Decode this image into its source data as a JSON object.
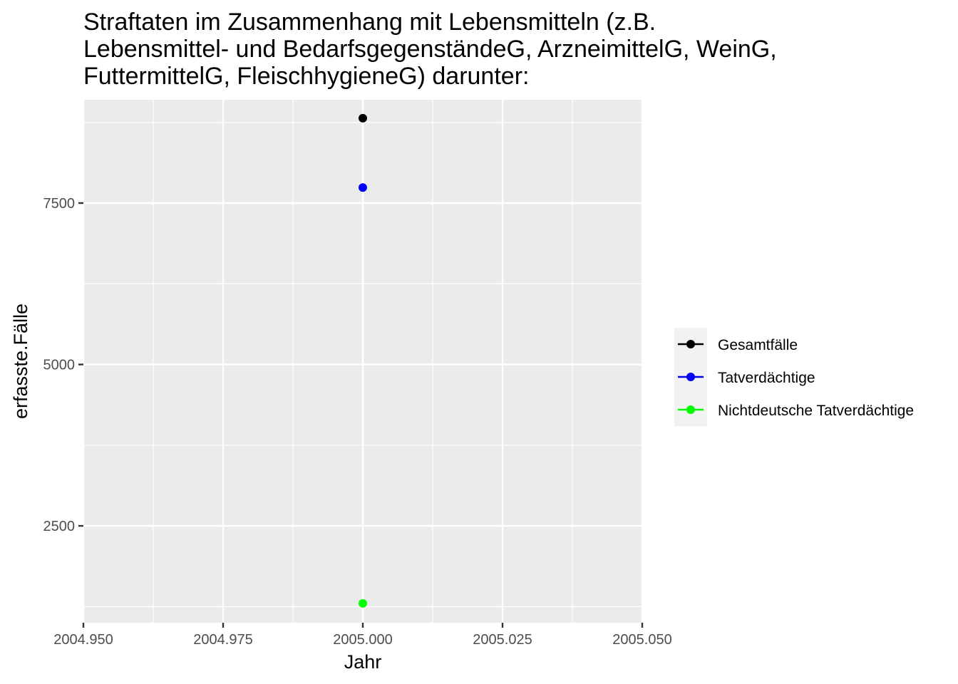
{
  "chart_data": {
    "type": "scatter",
    "title": "Straftaten im Zusammenhang mit Lebensmitteln (z.B. Lebensmittel- und BedarfsgegenständeG, ArzneimittelG, WeinG, FuttermittelG, FleischhygieneG) darunter:",
    "title_lines": [
      "Straftaten im Zusammenhang mit Lebensmitteln (z.B.",
      "Lebensmittel- und BedarfsgegenständeG, ArzneimittelG, WeinG,",
      "FuttermittelG, FleischhygieneG) darunter:"
    ],
    "xlabel": "Jahr",
    "ylabel": "erfasste.Fälle",
    "xlim": [
      2004.95,
      2005.05
    ],
    "ylim": [
      1000,
      9100
    ],
    "x_ticks": [
      2004.95,
      2004.975,
      2005.0,
      2005.025,
      2005.05
    ],
    "x_tick_labels": [
      "2004.950",
      "2004.975",
      "2005.000",
      "2005.025",
      "2005.050"
    ],
    "y_ticks": [
      2500,
      5000,
      7500
    ],
    "y_tick_labels": [
      "2500",
      "5000",
      "7500"
    ],
    "grid": true,
    "legend_position": "right",
    "series": [
      {
        "name": "Gesamtfälle",
        "color": "#000000",
        "x": [
          2005
        ],
        "values": [
          8815
        ]
      },
      {
        "name": "Tatverdächtige",
        "color": "#0000ff",
        "x": [
          2005
        ],
        "values": [
          7740
        ]
      },
      {
        "name": "Nichtdeutsche Tatverdächtige",
        "color": "#00ff00",
        "x": [
          2005
        ],
        "values": [
          1300
        ]
      }
    ]
  }
}
